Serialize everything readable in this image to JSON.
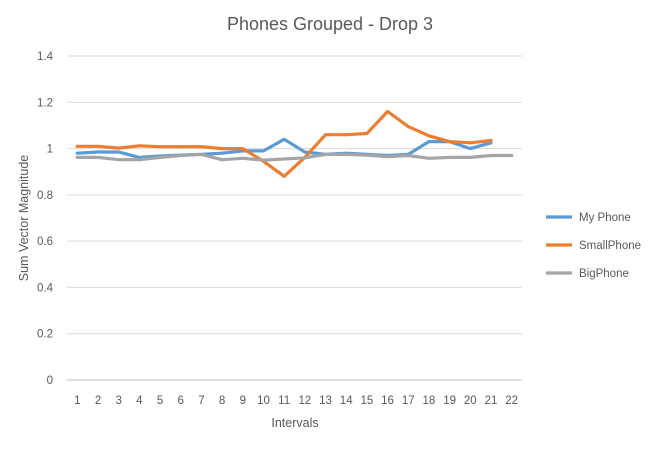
{
  "chart_data": {
    "type": "line",
    "title": "Phones Grouped - Drop 3",
    "xlabel": "Intervals",
    "ylabel": "Sum Vector Magnitude",
    "ylim": [
      0,
      1.4
    ],
    "yticks": [
      "0",
      "0.2",
      "0.4",
      "0.6",
      "0.8",
      "1",
      "1.2",
      "1.4"
    ],
    "categories": [
      "1",
      "2",
      "3",
      "4",
      "5",
      "6",
      "7",
      "8",
      "9",
      "10",
      "11",
      "12",
      "13",
      "14",
      "15",
      "16",
      "17",
      "18",
      "19",
      "20",
      "21",
      "22"
    ],
    "grid": true,
    "legend_position": "right",
    "series": [
      {
        "name": "My Phone",
        "color": "#5b9bd5",
        "values": [
          0.98,
          0.985,
          0.985,
          0.962,
          0.968,
          0.972,
          0.975,
          0.98,
          0.99,
          0.99,
          1.04,
          0.985,
          0.975,
          0.98,
          0.975,
          0.97,
          0.975,
          1.03,
          1.03,
          1.0,
          1.025,
          null
        ]
      },
      {
        "name": "SmallPhone",
        "color": "#ed7d31",
        "values": [
          1.01,
          1.01,
          1.002,
          1.012,
          1.008,
          1.008,
          1.008,
          1.0,
          1.0,
          0.945,
          0.88,
          0.962,
          1.06,
          1.06,
          1.065,
          1.16,
          1.095,
          1.055,
          1.03,
          1.025,
          1.035,
          null
        ]
      },
      {
        "name": "BigPhone",
        "color": "#a5a5a5",
        "values": [
          0.962,
          0.962,
          0.952,
          0.952,
          0.962,
          0.97,
          0.975,
          0.952,
          0.958,
          0.95,
          0.955,
          0.96,
          0.975,
          0.975,
          0.972,
          0.965,
          0.97,
          0.958,
          0.962,
          0.962,
          0.97,
          0.97
        ]
      }
    ]
  }
}
